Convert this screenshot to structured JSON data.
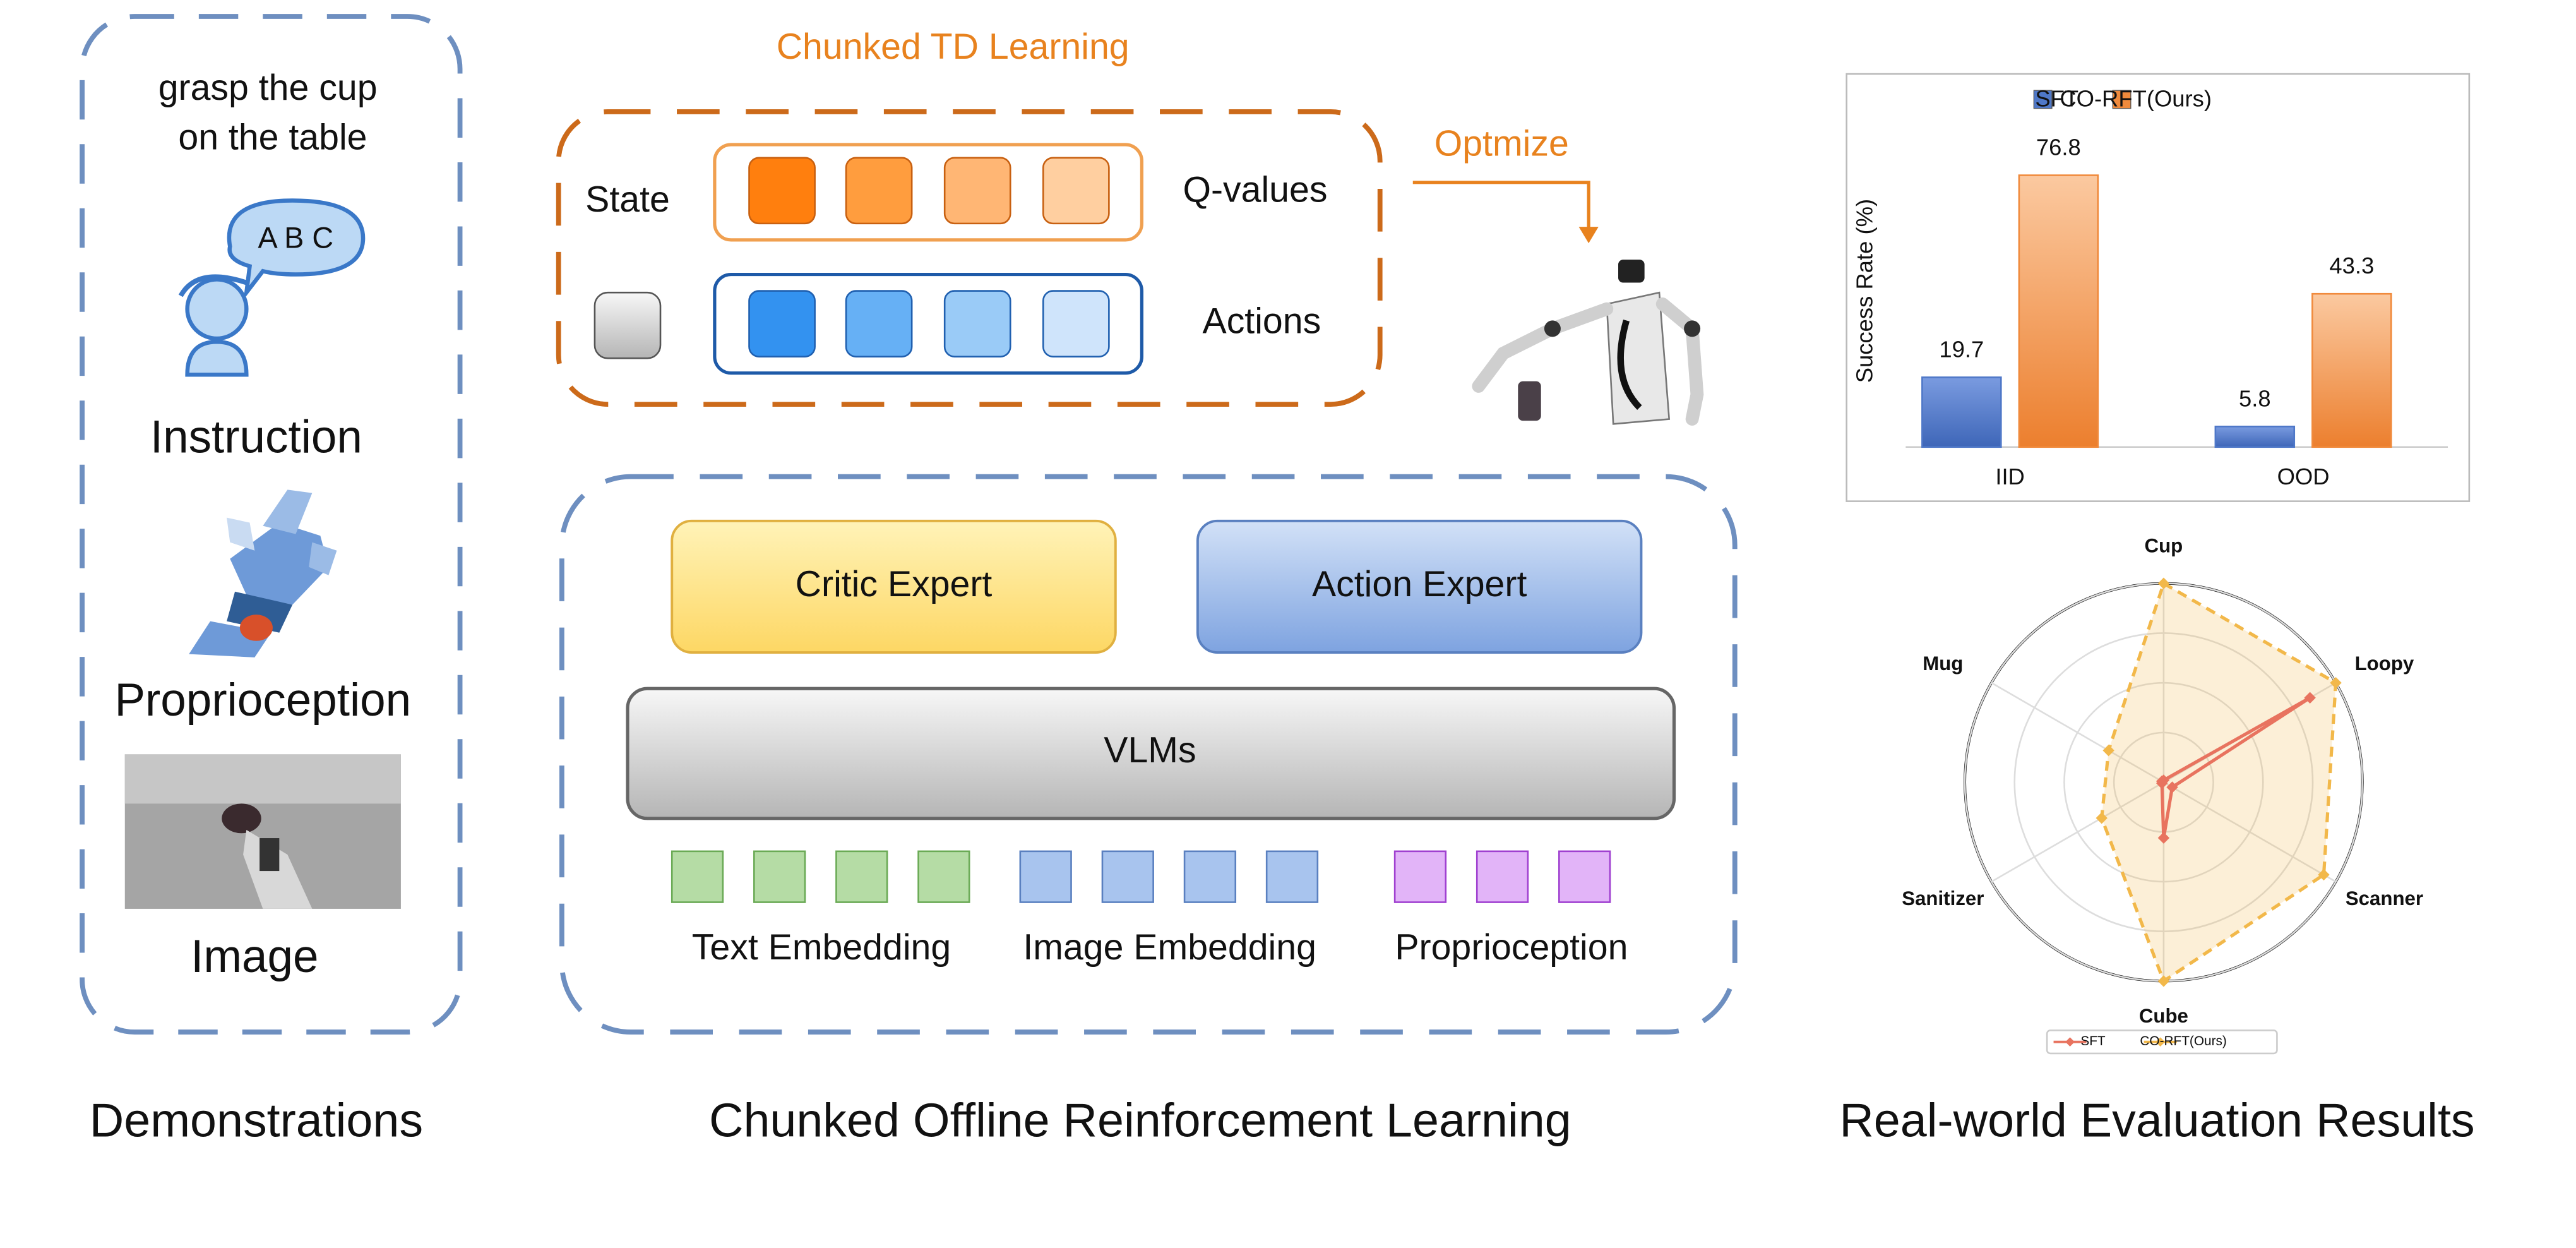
{
  "demonstrations": {
    "instruction_text": [
      "grasp the cup",
      "on the table"
    ],
    "speech_bubble": "A B C",
    "labels": [
      "Instruction",
      "Proprioception",
      "Image"
    ],
    "caption": "Demonstrations"
  },
  "td_learning": {
    "title": "Chunked TD Learning",
    "state": "State",
    "q_values": "Q-values",
    "actions": "Actions",
    "optimize": "Optmize"
  },
  "architecture": {
    "critic": "Critic Expert",
    "action": "Action Expert",
    "vlm": "VLMs",
    "embeddings": [
      "Text Embedding",
      "Image Embedding",
      "Proprioception"
    ],
    "caption": "Chunked Offline Reinforcement Learning"
  },
  "results": {
    "caption": "Real-world Evaluation Results",
    "bar_chart": {
      "type": "bar",
      "y_label": "Success Rate (%)",
      "categories": [
        "IID",
        "OOD"
      ],
      "series": [
        {
          "name": "SFT",
          "color": "#4f78c8",
          "values": [
            19.7,
            5.8
          ]
        },
        {
          "name": "CO-RFT(Ours)",
          "color": "#f08a3c",
          "values": [
            76.8,
            43.3
          ]
        }
      ],
      "ylim": [
        0,
        85
      ]
    },
    "radar_chart": {
      "type": "radar",
      "categories": [
        "Cup",
        "Loopy",
        "Scanner",
        "Cube",
        "Sanitizer",
        "Mug"
      ],
      "series": [
        {
          "name": "SFT",
          "color": "#e8735f",
          "values": [
            1,
            85,
            5,
            28,
            1,
            1
          ]
        },
        {
          "name": "CO-RFT(Ours)",
          "color": "#f2b84a",
          "values": [
            100,
            100,
            93,
            100,
            36,
            32
          ]
        }
      ],
      "rlim": [
        0,
        100
      ],
      "rticks": [
        25,
        50,
        75,
        100
      ]
    }
  }
}
